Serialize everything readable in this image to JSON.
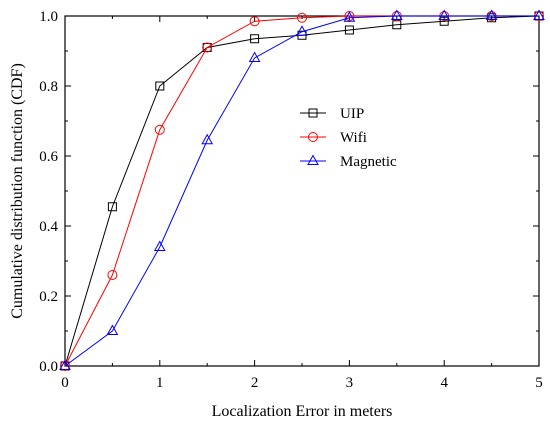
{
  "chart_data": {
    "type": "line",
    "title": "",
    "xlabel": "Localization Error in meters",
    "ylabel": "Cumulative distribution function (CDF)",
    "xlim": [
      0,
      5
    ],
    "ylim": [
      0,
      1.0
    ],
    "xticks": [
      "0",
      "1",
      "2",
      "3",
      "4",
      "5"
    ],
    "yticks": [
      "0.0",
      "0.2",
      "0.4",
      "0.6",
      "0.8",
      "1.0"
    ],
    "grid": false,
    "legend_position": "center-right",
    "series": [
      {
        "name": "UIP",
        "marker": "square",
        "color": "#000000",
        "x": [
          0,
          0.5,
          1.0,
          1.5,
          2.0,
          2.5,
          3.0,
          3.5,
          4.0,
          4.5,
          5.0
        ],
        "y": [
          0,
          0.455,
          0.8,
          0.91,
          0.935,
          0.945,
          0.96,
          0.975,
          0.985,
          0.995,
          1.0
        ]
      },
      {
        "name": "Wifi",
        "marker": "circle",
        "color": "#ff0000",
        "x": [
          0,
          0.5,
          1.0,
          1.5,
          2.0,
          2.5,
          3.0,
          3.5,
          4.0,
          4.5,
          5.0
        ],
        "y": [
          0,
          0.26,
          0.675,
          0.91,
          0.985,
          0.995,
          1.0,
          1.0,
          1.0,
          1.0,
          1.0
        ]
      },
      {
        "name": "Magnetic",
        "marker": "triangle",
        "color": "#0000ff",
        "x": [
          0,
          0.5,
          1.0,
          1.5,
          2.0,
          2.5,
          3.0,
          3.5,
          4.0,
          4.5,
          5.0
        ],
        "y": [
          0,
          0.1,
          0.34,
          0.645,
          0.88,
          0.955,
          0.995,
          1.0,
          1.0,
          1.0,
          1.0
        ]
      }
    ]
  }
}
